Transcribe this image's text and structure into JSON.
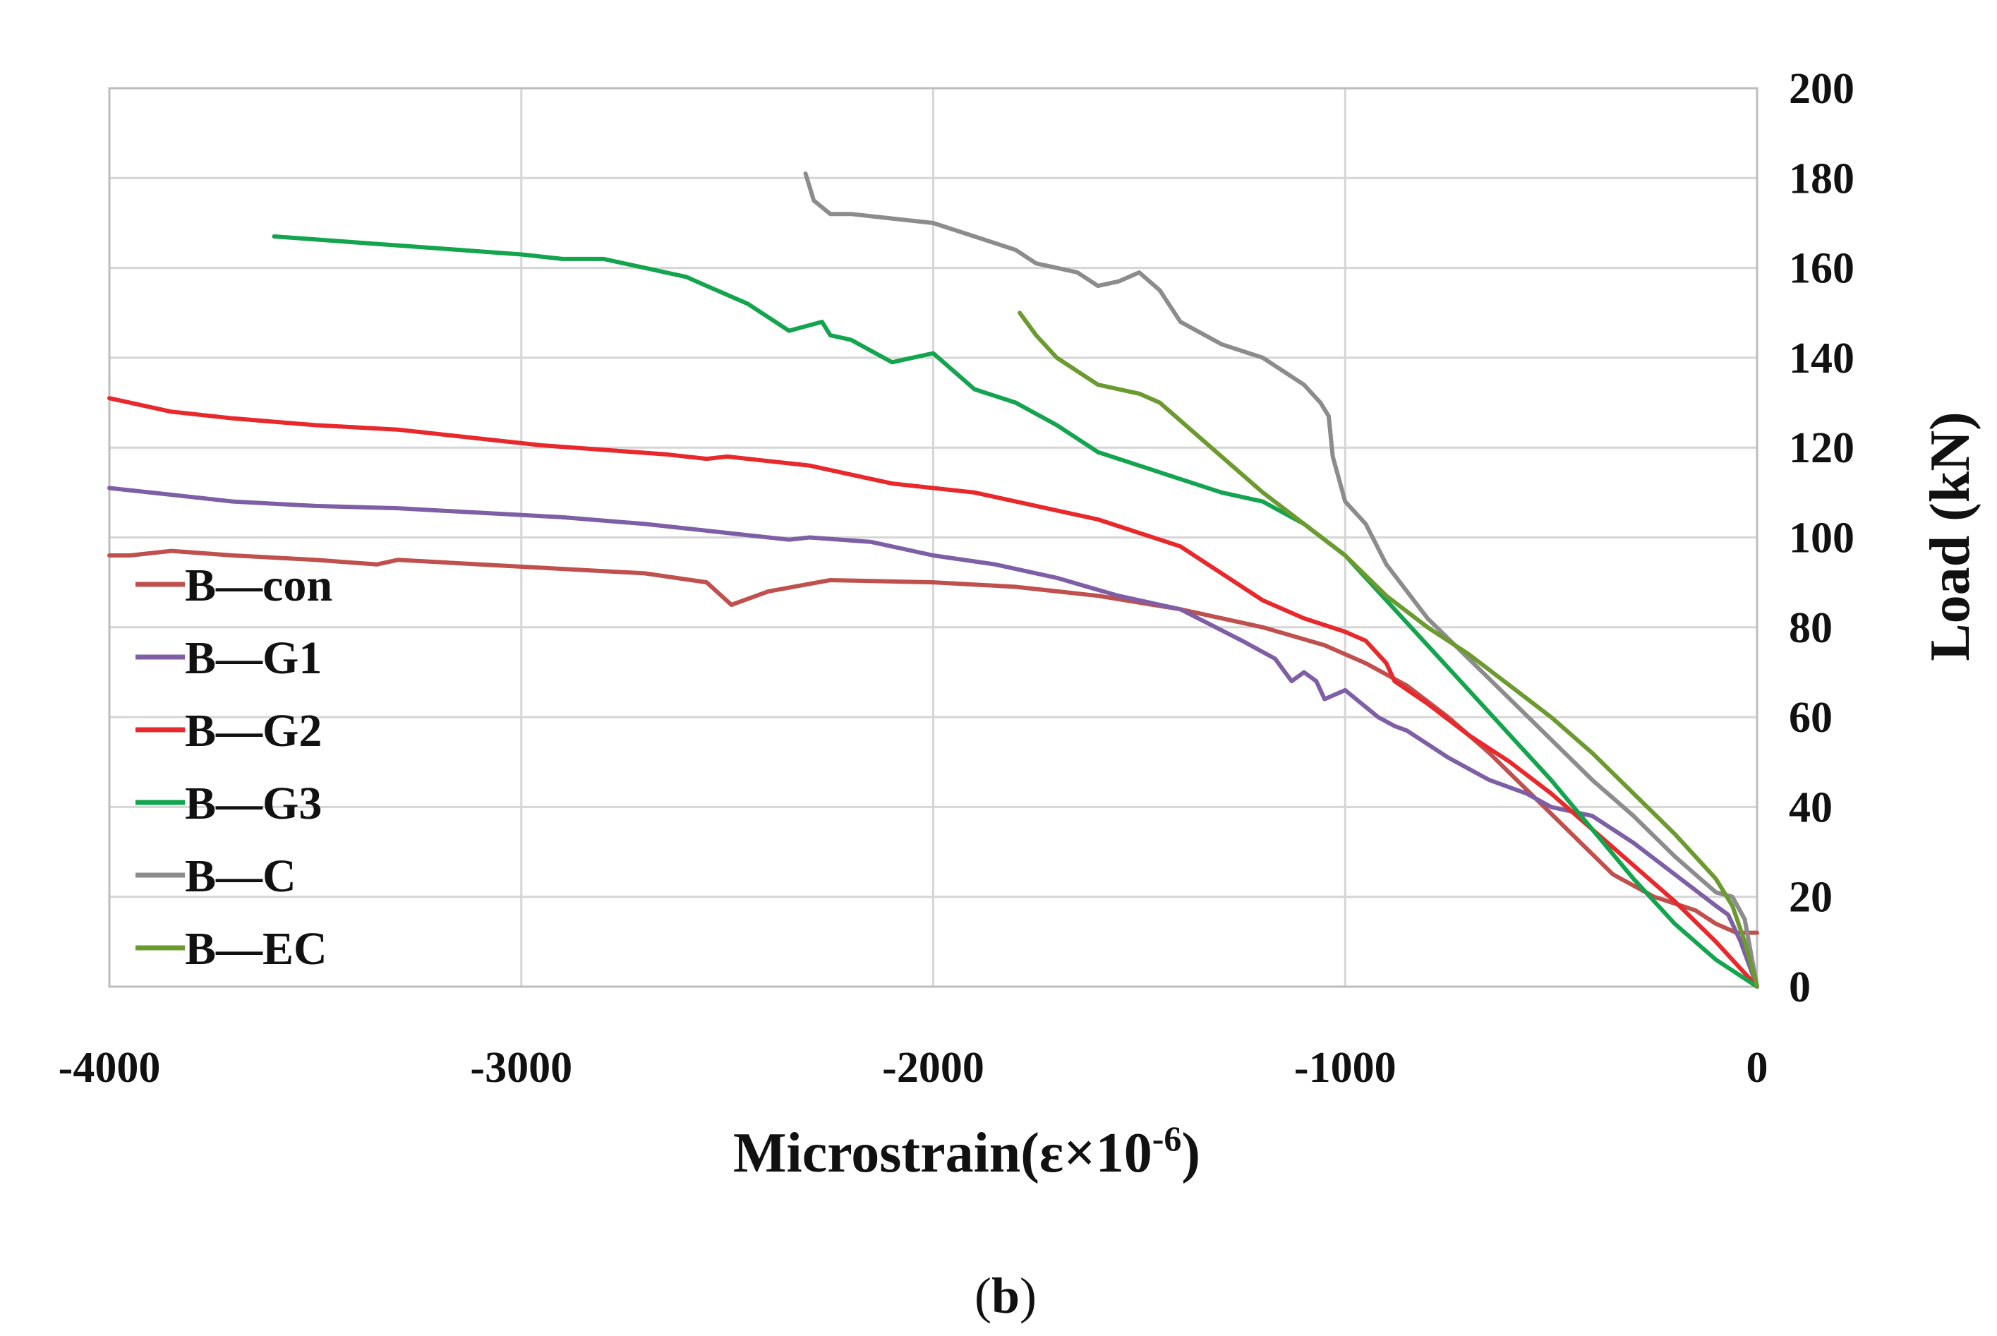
{
  "chart_data": {
    "type": "line",
    "title": "",
    "caption": {
      "open": "(",
      "label": "b",
      "close": ")"
    },
    "xlabel": "Microstrain(ε×10",
    "xlabel_exp": "-6",
    "xlabel_close": ")",
    "ylabel": "Load (kN)",
    "xlim": [
      -4000,
      0
    ],
    "ylim": [
      0,
      200
    ],
    "x_ticks": [
      -4000,
      -3000,
      -2000,
      -1000,
      0
    ],
    "y_ticks": [
      0,
      20,
      40,
      60,
      80,
      100,
      120,
      140,
      160,
      180,
      200
    ],
    "grid": true,
    "y_axis_side": "right",
    "legend_position": "left",
    "series": [
      {
        "name": "B—con",
        "color": "#c0504d",
        "points": [
          [
            0,
            12
          ],
          [
            -50,
            12
          ],
          [
            -100,
            14
          ],
          [
            -150,
            17
          ],
          [
            -250,
            20
          ],
          [
            -350,
            25
          ],
          [
            -450,
            34
          ],
          [
            -550,
            43
          ],
          [
            -650,
            52
          ],
          [
            -750,
            60
          ],
          [
            -850,
            67
          ],
          [
            -950,
            72
          ],
          [
            -1050,
            76
          ],
          [
            -1200,
            80
          ],
          [
            -1400,
            84
          ],
          [
            -1600,
            87
          ],
          [
            -1800,
            89
          ],
          [
            -2000,
            90
          ],
          [
            -2250,
            90.5
          ],
          [
            -2400,
            88
          ],
          [
            -2490,
            85
          ],
          [
            -2550,
            90
          ],
          [
            -2700,
            92
          ],
          [
            -2900,
            93
          ],
          [
            -3100,
            94
          ],
          [
            -3300,
            95
          ],
          [
            -3350,
            94
          ],
          [
            -3500,
            95
          ],
          [
            -3700,
            96
          ],
          [
            -3850,
            97
          ],
          [
            -3950,
            96
          ],
          [
            -4000,
            96
          ]
        ]
      },
      {
        "name": "B—G1",
        "color": "#7e5fa6",
        "points": [
          [
            0,
            0
          ],
          [
            -40,
            10
          ],
          [
            -70,
            16
          ],
          [
            -100,
            18
          ],
          [
            -200,
            25
          ],
          [
            -300,
            32
          ],
          [
            -400,
            38
          ],
          [
            -500,
            40
          ],
          [
            -560,
            43
          ],
          [
            -650,
            46
          ],
          [
            -750,
            51
          ],
          [
            -850,
            57
          ],
          [
            -880,
            58
          ],
          [
            -920,
            60
          ],
          [
            -1000,
            66
          ],
          [
            -1050,
            64
          ],
          [
            -1070,
            68
          ],
          [
            -1100,
            70
          ],
          [
            -1130,
            68
          ],
          [
            -1170,
            73
          ],
          [
            -1250,
            77
          ],
          [
            -1400,
            84
          ],
          [
            -1550,
            87
          ],
          [
            -1700,
            91
          ],
          [
            -1850,
            94
          ],
          [
            -2000,
            96
          ],
          [
            -2150,
            99
          ],
          [
            -2300,
            100
          ],
          [
            -2350,
            99.5
          ],
          [
            -2500,
            101
          ],
          [
            -2700,
            103
          ],
          [
            -2900,
            104.5
          ],
          [
            -3100,
            105.5
          ],
          [
            -3300,
            106.5
          ],
          [
            -3500,
            107
          ],
          [
            -3700,
            108
          ],
          [
            -3850,
            109.5
          ],
          [
            -4000,
            111
          ]
        ]
      },
      {
        "name": "B—G2",
        "color": "#e8282b",
        "points": [
          [
            0,
            0
          ],
          [
            -50,
            5
          ],
          [
            -100,
            10
          ],
          [
            -200,
            19
          ],
          [
            -300,
            27
          ],
          [
            -400,
            35
          ],
          [
            -500,
            43
          ],
          [
            -600,
            50
          ],
          [
            -700,
            56
          ],
          [
            -800,
            63
          ],
          [
            -880,
            68
          ],
          [
            -900,
            72
          ],
          [
            -950,
            77
          ],
          [
            -1000,
            79
          ],
          [
            -1100,
            82
          ],
          [
            -1200,
            86
          ],
          [
            -1300,
            92
          ],
          [
            -1400,
            98
          ],
          [
            -1500,
            101
          ],
          [
            -1600,
            104
          ],
          [
            -1700,
            106
          ],
          [
            -1800,
            108
          ],
          [
            -1900,
            110
          ],
          [
            -2000,
            111
          ],
          [
            -2100,
            112
          ],
          [
            -2200,
            114
          ],
          [
            -2300,
            116
          ],
          [
            -2400,
            117
          ],
          [
            -2500,
            118
          ],
          [
            -2550,
            117.5
          ],
          [
            -2650,
            118.5
          ],
          [
            -2800,
            119.5
          ],
          [
            -2950,
            120.5
          ],
          [
            -3100,
            122
          ],
          [
            -3300,
            124
          ],
          [
            -3500,
            125
          ],
          [
            -3700,
            126.5
          ],
          [
            -3850,
            128
          ],
          [
            -4000,
            131
          ]
        ]
      },
      {
        "name": "B—G3",
        "color": "#13a44e",
        "points": [
          [
            0,
            0
          ],
          [
            -50,
            3
          ],
          [
            -100,
            6
          ],
          [
            -200,
            14
          ],
          [
            -300,
            24
          ],
          [
            -400,
            35
          ],
          [
            -500,
            46
          ],
          [
            -600,
            56
          ],
          [
            -700,
            66
          ],
          [
            -800,
            76
          ],
          [
            -900,
            86
          ],
          [
            -1000,
            96
          ],
          [
            -1100,
            103
          ],
          [
            -1200,
            108
          ],
          [
            -1300,
            110
          ],
          [
            -1400,
            113
          ],
          [
            -1500,
            116
          ],
          [
            -1600,
            119
          ],
          [
            -1700,
            125
          ],
          [
            -1800,
            130
          ],
          [
            -1900,
            133
          ],
          [
            -1950,
            137
          ],
          [
            -2000,
            141
          ],
          [
            -2100,
            139
          ],
          [
            -2200,
            144
          ],
          [
            -2250,
            145
          ],
          [
            -2270,
            148
          ],
          [
            -2350,
            146
          ],
          [
            -2450,
            152
          ],
          [
            -2550,
            156
          ],
          [
            -2600,
            158
          ],
          [
            -2700,
            160
          ],
          [
            -2800,
            162
          ],
          [
            -2900,
            162
          ],
          [
            -3000,
            163
          ],
          [
            -3150,
            164
          ],
          [
            -3300,
            165
          ],
          [
            -3450,
            166
          ],
          [
            -3600,
            167
          ]
        ]
      },
      {
        "name": "B—C",
        "color": "#8c8c8c",
        "points": [
          [
            0,
            0
          ],
          [
            -30,
            15
          ],
          [
            -60,
            20
          ],
          [
            -100,
            21
          ],
          [
            -200,
            29
          ],
          [
            -300,
            38
          ],
          [
            -400,
            46
          ],
          [
            -500,
            55
          ],
          [
            -600,
            64
          ],
          [
            -700,
            73
          ],
          [
            -800,
            82
          ],
          [
            -900,
            94
          ],
          [
            -950,
            103
          ],
          [
            -1000,
            108
          ],
          [
            -1030,
            118
          ],
          [
            -1040,
            127
          ],
          [
            -1060,
            130
          ],
          [
            -1100,
            134
          ],
          [
            -1200,
            140
          ],
          [
            -1300,
            143
          ],
          [
            -1400,
            148
          ],
          [
            -1450,
            155
          ],
          [
            -1500,
            159
          ],
          [
            -1550,
            157
          ],
          [
            -1600,
            156
          ],
          [
            -1650,
            159
          ],
          [
            -1700,
            160
          ],
          [
            -1750,
            161
          ],
          [
            -1800,
            164
          ],
          [
            -1900,
            167
          ],
          [
            -2000,
            170
          ],
          [
            -2100,
            171
          ],
          [
            -2200,
            172
          ],
          [
            -2250,
            172
          ],
          [
            -2290,
            175
          ],
          [
            -2300,
            178
          ],
          [
            -2310,
            181
          ]
        ]
      },
      {
        "name": "B—EC",
        "color": "#6b9a2f",
        "points": [
          [
            0,
            0
          ],
          [
            -30,
            10
          ],
          [
            -60,
            18
          ],
          [
            -100,
            24
          ],
          [
            -200,
            34
          ],
          [
            -300,
            43
          ],
          [
            -400,
            52
          ],
          [
            -500,
            60
          ],
          [
            -600,
            67
          ],
          [
            -700,
            74
          ],
          [
            -800,
            80
          ],
          [
            -900,
            87
          ],
          [
            -1000,
            96
          ],
          [
            -1100,
            103
          ],
          [
            -1200,
            110
          ],
          [
            -1300,
            118
          ],
          [
            -1400,
            126
          ],
          [
            -1450,
            130
          ],
          [
            -1500,
            132
          ],
          [
            -1600,
            134
          ],
          [
            -1700,
            140
          ],
          [
            -1750,
            145
          ],
          [
            -1790,
            150
          ]
        ]
      }
    ]
  }
}
